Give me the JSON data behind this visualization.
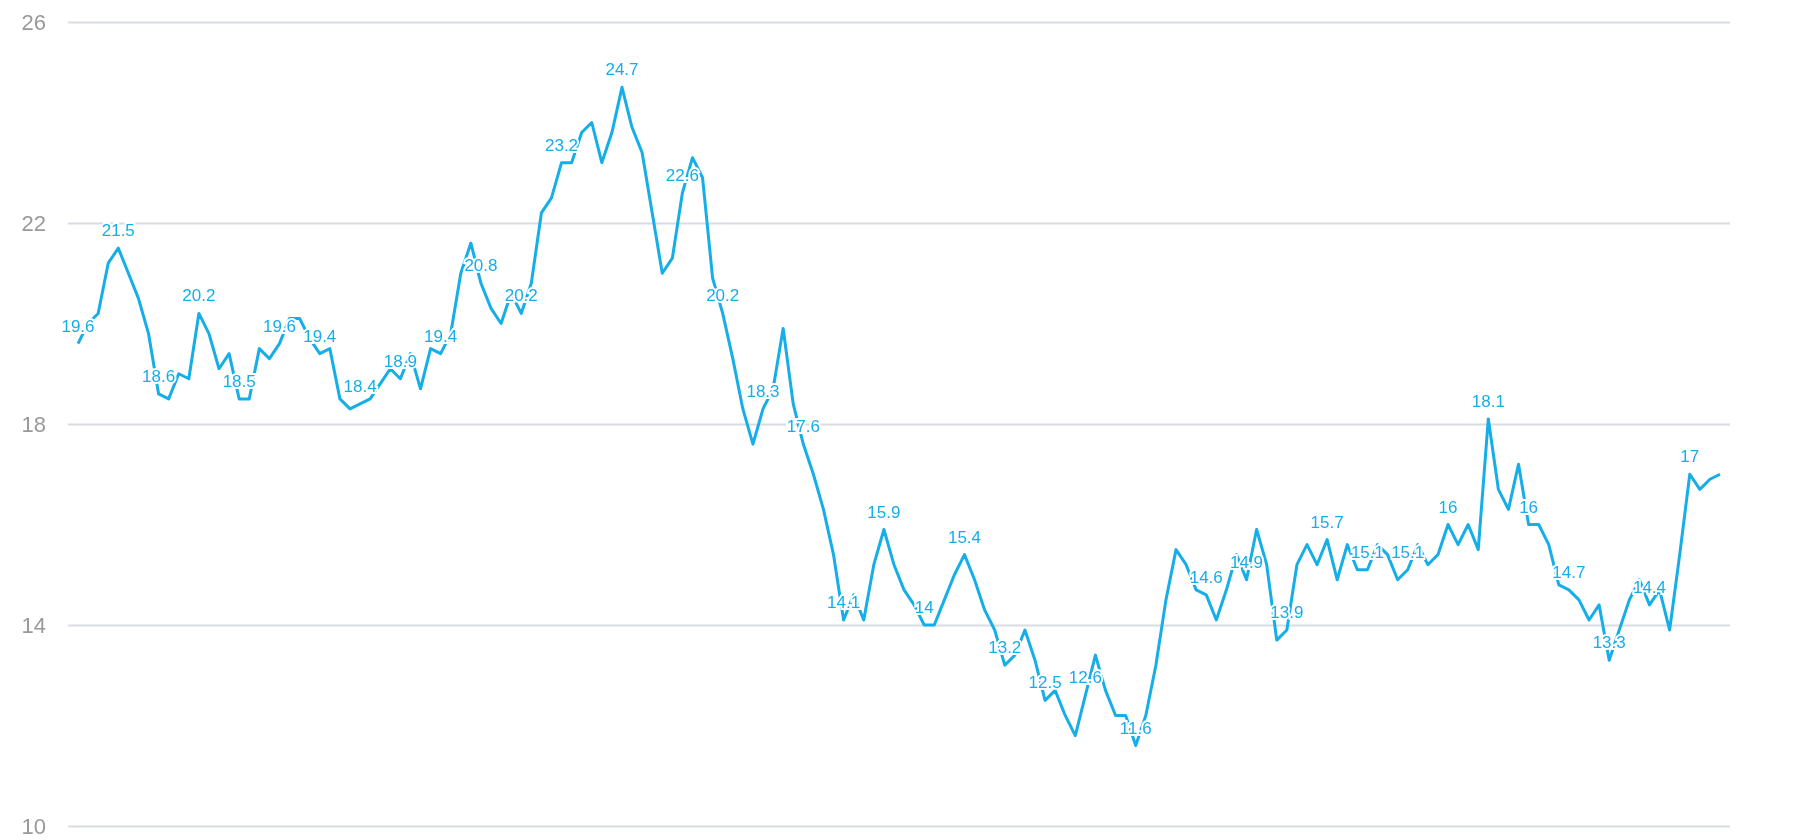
{
  "chart_data": {
    "type": "line",
    "categories": [
      null,
      null,
      null,
      null,
      null,
      null,
      null,
      null,
      null,
      null,
      null,
      null,
      null,
      null,
      null,
      null,
      null,
      null,
      null,
      null,
      null,
      null,
      null,
      null,
      null,
      null,
      null,
      null,
      null,
      null,
      null,
      null,
      null,
      null,
      null,
      null,
      null,
      null,
      null,
      null,
      null,
      null,
      null,
      null,
      null,
      null,
      null,
      null,
      null,
      null,
      null,
      null,
      null,
      null,
      null,
      null,
      null,
      null,
      null,
      null,
      null,
      null,
      null,
      null,
      null,
      null,
      null,
      null,
      null,
      null,
      null,
      null,
      null,
      null,
      null,
      null,
      null,
      null,
      null,
      null,
      null,
      null,
      null,
      null,
      null,
      null,
      null,
      null,
      null,
      null,
      null,
      null,
      null,
      null,
      null,
      null,
      null,
      null,
      null,
      null,
      null,
      null,
      null,
      null,
      null,
      null,
      null,
      null,
      null,
      null,
      null,
      null,
      null,
      null,
      null,
      null,
      null,
      null,
      null,
      null,
      null,
      null,
      null,
      null,
      null,
      null,
      null,
      null,
      null,
      null,
      null,
      null,
      null,
      null,
      null,
      null,
      null,
      null,
      null,
      null,
      null,
      null,
      null,
      null,
      null,
      null,
      null,
      null,
      null,
      null,
      null,
      null,
      null,
      null,
      null,
      null,
      null,
      null,
      null,
      null,
      null,
      null,
      null,
      null
    ],
    "series": [
      {
        "color": "#16aee8",
        "values": [
          19.6,
          20.0,
          20.2,
          21.2,
          21.5,
          21.0,
          20.5,
          19.8,
          18.6,
          18.5,
          19.0,
          18.9,
          20.2,
          19.8,
          19.1,
          19.4,
          18.5,
          18.5,
          19.5,
          19.3,
          19.6,
          20.1,
          20.1,
          19.7,
          19.4,
          19.5,
          18.5,
          18.3,
          18.4,
          18.5,
          18.8,
          19.1,
          18.9,
          19.4,
          18.7,
          19.5,
          19.4,
          19.8,
          21.0,
          21.6,
          20.8,
          20.3,
          20.0,
          20.6,
          20.2,
          20.8,
          22.2,
          22.5,
          23.2,
          23.2,
          23.8,
          24.0,
          23.2,
          23.8,
          24.7,
          23.9,
          23.4,
          22.2,
          21.0,
          21.3,
          22.6,
          23.3,
          22.9,
          20.9,
          20.2,
          19.3,
          18.3,
          17.6,
          18.3,
          18.7,
          19.9,
          18.4,
          17.6,
          17.0,
          16.3,
          15.4,
          14.1,
          14.6,
          14.1,
          15.2,
          15.9,
          15.2,
          14.7,
          14.4,
          14.0,
          14.0,
          14.5,
          15.0,
          15.4,
          14.9,
          14.3,
          13.9,
          13.2,
          13.4,
          13.9,
          13.3,
          12.5,
          12.7,
          12.2,
          11.8,
          12.6,
          13.4,
          12.7,
          12.2,
          12.2,
          11.6,
          12.2,
          13.2,
          14.5,
          15.5,
          15.2,
          14.7,
          14.6,
          14.1,
          14.7,
          15.4,
          14.9,
          15.9,
          15.2,
          13.7,
          13.9,
          15.2,
          15.6,
          15.2,
          15.7,
          14.9,
          15.6,
          15.1,
          15.1,
          15.6,
          15.4,
          14.9,
          15.1,
          15.6,
          15.2,
          15.4,
          16.0,
          15.6,
          16.0,
          15.5,
          18.1,
          16.7,
          16.3,
          17.2,
          16.0,
          16.0,
          15.6,
          14.8,
          14.7,
          14.5,
          14.1,
          14.4,
          13.3,
          13.9,
          14.5,
          14.9,
          14.4,
          14.7,
          13.9,
          15.4,
          17.0,
          16.7,
          16.9,
          17.0
        ]
      }
    ],
    "value_labels": [
      "19.6",
      null,
      null,
      null,
      "21.5",
      null,
      null,
      null,
      "18.6",
      null,
      null,
      null,
      "20.2",
      null,
      null,
      null,
      "18.5",
      null,
      null,
      null,
      "19.6",
      null,
      null,
      null,
      "19.4",
      null,
      null,
      null,
      "18.4",
      null,
      null,
      null,
      "18.9",
      null,
      null,
      null,
      "19.4",
      null,
      null,
      null,
      "20.8",
      null,
      null,
      null,
      "20.2",
      null,
      null,
      null,
      "23.2",
      null,
      null,
      null,
      null,
      null,
      "24.7",
      null,
      null,
      null,
      null,
      null,
      "22.6",
      null,
      null,
      null,
      "20.2",
      null,
      null,
      null,
      "18.3",
      null,
      null,
      null,
      "17.6",
      null,
      null,
      null,
      "14.1",
      null,
      null,
      null,
      "15.9",
      null,
      null,
      null,
      "14",
      null,
      null,
      null,
      "15.4",
      null,
      null,
      null,
      "13.2",
      null,
      null,
      null,
      "12.5",
      null,
      null,
      null,
      "12.6",
      null,
      null,
      null,
      null,
      "11.6",
      null,
      null,
      null,
      null,
      null,
      null,
      "14.6",
      null,
      null,
      null,
      "14.9",
      null,
      null,
      null,
      "13.9",
      null,
      null,
      null,
      "15.7",
      null,
      null,
      null,
      "15.1",
      null,
      null,
      null,
      "15.1",
      null,
      null,
      null,
      "16",
      null,
      null,
      null,
      "18.1",
      null,
      null,
      null,
      "16",
      null,
      null,
      null,
      "14.7",
      null,
      null,
      null,
      "13.3",
      null,
      null,
      null,
      "14.4",
      null,
      null,
      null,
      "17",
      null,
      null,
      null
    ],
    "ylim": [
      10,
      26
    ],
    "yticks": [
      10,
      14,
      18,
      22,
      26
    ],
    "grid": "y"
  }
}
